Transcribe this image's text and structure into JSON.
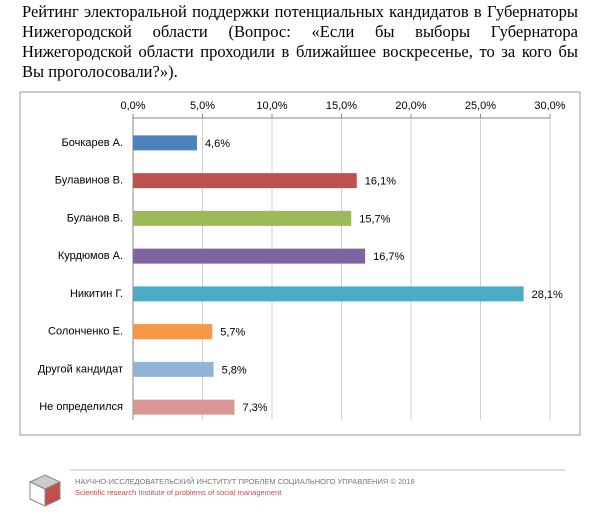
{
  "heading": "Рейтинг электоральной поддержки потенциальных кандидатов в Губернаторы Нижегородской области (Вопрос: «Если бы выборы Губернатора Нижегородской области проходили в ближайшее воскресенье, то за кого бы Вы проголосовали?»).",
  "chart_data": {
    "type": "bar",
    "orientation": "horizontal",
    "categories": [
      "Бочкарев А.",
      "Булавинов В.",
      "Буланов В.",
      "Курдюмов А.",
      "Никитин Г.",
      "Солонченко Е.",
      "Другой кандидат",
      "Не определился"
    ],
    "values": [
      4.6,
      16.1,
      15.7,
      16.7,
      28.1,
      5.7,
      5.8,
      7.3
    ],
    "value_labels": [
      "4,6%",
      "16,1%",
      "15,7%",
      "16,7%",
      "28,1%",
      "5,7%",
      "5,8%",
      "7,3%"
    ],
    "colors": [
      "#4f81bd",
      "#c0504d",
      "#9bbb59",
      "#8064a2",
      "#4bacc6",
      "#f79646",
      "#95b3d7",
      "#d99694"
    ],
    "xlim": [
      0,
      30
    ],
    "xticks": [
      {
        "value": 0,
        "label": "0,0%"
      },
      {
        "value": 5,
        "label": "5,0%"
      },
      {
        "value": 10,
        "label": "10,0%"
      },
      {
        "value": 15,
        "label": "15,0%"
      },
      {
        "value": 20,
        "label": "20,0%"
      },
      {
        "value": 25,
        "label": "25,0%"
      },
      {
        "value": 30,
        "label": "30,0%"
      }
    ],
    "grid": true
  },
  "footer": {
    "org": "НАУЧНО-ИССЛЕДОВАТЕЛЬСКИЙ ИНСТИТУТ ПРОБЛЕМ СОЦИАЛЬНОГО УПРАВЛЕНИЯ  © 2018",
    "org_en": "Scientific research Institute of problems of social management"
  }
}
